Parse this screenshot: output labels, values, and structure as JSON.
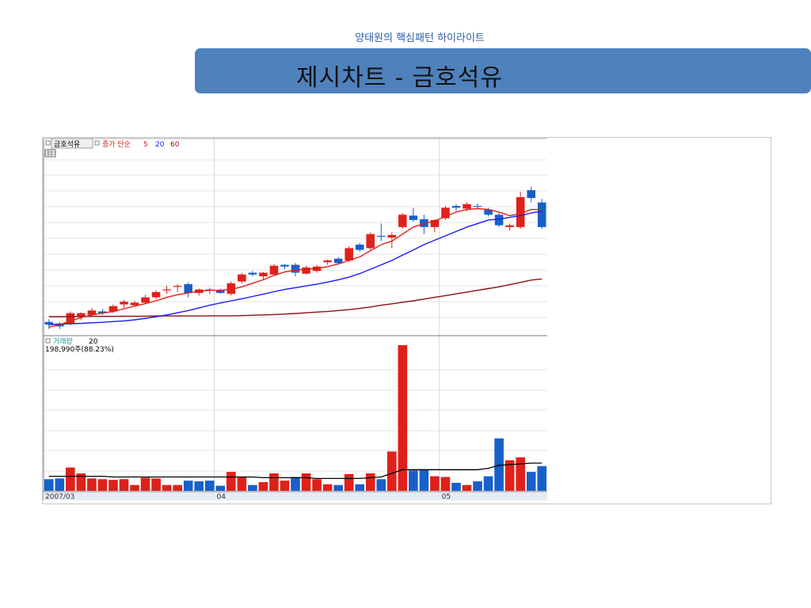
{
  "header": {
    "subtitle": "양태원의 핵심패턴 하이라이트",
    "title": "제시차트 - 금호석유"
  },
  "chart_data": {
    "type": "candlestick",
    "price_panel": {
      "stock_label": "금호석유",
      "indicator_label": "종가 단순",
      "ma_periods": [
        "5",
        "20",
        "60"
      ],
      "ma_colors": [
        "#e0201a",
        "#1a1aff",
        "#8b1010"
      ],
      "candles": [
        {
          "o": 0.045,
          "h": 0.075,
          "l": 0.02,
          "c": 0.06,
          "dir": "down"
        },
        {
          "o": 0.035,
          "h": 0.06,
          "l": 0.02,
          "c": 0.045,
          "dir": "down"
        },
        {
          "o": 0.05,
          "h": 0.12,
          "l": 0.04,
          "c": 0.11,
          "dir": "up"
        },
        {
          "o": 0.09,
          "h": 0.115,
          "l": 0.07,
          "c": 0.11,
          "dir": "up"
        },
        {
          "o": 0.1,
          "h": 0.14,
          "l": 0.09,
          "c": 0.125,
          "dir": "up"
        },
        {
          "o": 0.11,
          "h": 0.135,
          "l": 0.1,
          "c": 0.12,
          "dir": "down"
        },
        {
          "o": 0.12,
          "h": 0.16,
          "l": 0.11,
          "c": 0.15,
          "dir": "up"
        },
        {
          "o": 0.16,
          "h": 0.185,
          "l": 0.14,
          "c": 0.175,
          "dir": "up"
        },
        {
          "o": 0.155,
          "h": 0.18,
          "l": 0.15,
          "c": 0.17,
          "dir": "up"
        },
        {
          "o": 0.17,
          "h": 0.215,
          "l": 0.16,
          "c": 0.2,
          "dir": "up"
        },
        {
          "o": 0.2,
          "h": 0.24,
          "l": 0.19,
          "c": 0.23,
          "dir": "up"
        },
        {
          "o": 0.24,
          "h": 0.265,
          "l": 0.22,
          "c": 0.245,
          "dir": "up"
        },
        {
          "o": 0.26,
          "h": 0.275,
          "l": 0.23,
          "c": 0.265,
          "dir": "up"
        },
        {
          "o": 0.275,
          "h": 0.285,
          "l": 0.2,
          "c": 0.225,
          "dir": "down"
        },
        {
          "o": 0.225,
          "h": 0.25,
          "l": 0.21,
          "c": 0.245,
          "dir": "up"
        },
        {
          "o": 0.245,
          "h": 0.255,
          "l": 0.22,
          "c": 0.24,
          "dir": "down"
        },
        {
          "o": 0.24,
          "h": 0.25,
          "l": 0.22,
          "c": 0.225,
          "dir": "down"
        },
        {
          "o": 0.22,
          "h": 0.29,
          "l": 0.21,
          "c": 0.28,
          "dir": "up"
        },
        {
          "o": 0.29,
          "h": 0.34,
          "l": 0.28,
          "c": 0.33,
          "dir": "up"
        },
        {
          "o": 0.33,
          "h": 0.35,
          "l": 0.32,
          "c": 0.34,
          "dir": "down"
        },
        {
          "o": 0.32,
          "h": 0.345,
          "l": 0.3,
          "c": 0.34,
          "dir": "up"
        },
        {
          "o": 0.33,
          "h": 0.39,
          "l": 0.32,
          "c": 0.38,
          "dir": "up"
        },
        {
          "o": 0.375,
          "h": 0.39,
          "l": 0.36,
          "c": 0.385,
          "dir": "down"
        },
        {
          "o": 0.385,
          "h": 0.395,
          "l": 0.32,
          "c": 0.34,
          "dir": "down"
        },
        {
          "o": 0.335,
          "h": 0.38,
          "l": 0.33,
          "c": 0.37,
          "dir": "up"
        },
        {
          "o": 0.35,
          "h": 0.385,
          "l": 0.34,
          "c": 0.375,
          "dir": "up"
        },
        {
          "o": 0.4,
          "h": 0.415,
          "l": 0.385,
          "c": 0.41,
          "dir": "up"
        },
        {
          "o": 0.42,
          "h": 0.43,
          "l": 0.39,
          "c": 0.395,
          "dir": "down"
        },
        {
          "o": 0.41,
          "h": 0.49,
          "l": 0.4,
          "c": 0.48,
          "dir": "up"
        },
        {
          "o": 0.5,
          "h": 0.51,
          "l": 0.46,
          "c": 0.47,
          "dir": "down"
        },
        {
          "o": 0.48,
          "h": 0.57,
          "l": 0.47,
          "c": 0.56,
          "dir": "up"
        },
        {
          "o": 0.55,
          "h": 0.62,
          "l": 0.52,
          "c": 0.545,
          "dir": "down"
        },
        {
          "o": 0.54,
          "h": 0.57,
          "l": 0.48,
          "c": 0.555,
          "dir": "up"
        },
        {
          "o": 0.6,
          "h": 0.68,
          "l": 0.59,
          "c": 0.67,
          "dir": "up"
        },
        {
          "o": 0.665,
          "h": 0.71,
          "l": 0.63,
          "c": 0.64,
          "dir": "down"
        },
        {
          "o": 0.645,
          "h": 0.67,
          "l": 0.56,
          "c": 0.6,
          "dir": "down"
        },
        {
          "o": 0.6,
          "h": 0.645,
          "l": 0.57,
          "c": 0.64,
          "dir": "up"
        },
        {
          "o": 0.65,
          "h": 0.72,
          "l": 0.64,
          "c": 0.71,
          "dir": "up"
        },
        {
          "o": 0.71,
          "h": 0.73,
          "l": 0.69,
          "c": 0.72,
          "dir": "down"
        },
        {
          "o": 0.705,
          "h": 0.74,
          "l": 0.69,
          "c": 0.73,
          "dir": "up"
        },
        {
          "o": 0.715,
          "h": 0.735,
          "l": 0.7,
          "c": 0.72,
          "dir": "down"
        },
        {
          "o": 0.7,
          "h": 0.71,
          "l": 0.66,
          "c": 0.67,
          "dir": "down"
        },
        {
          "o": 0.67,
          "h": 0.68,
          "l": 0.6,
          "c": 0.61,
          "dir": "down"
        },
        {
          "o": 0.6,
          "h": 0.62,
          "l": 0.58,
          "c": 0.61,
          "dir": "up"
        },
        {
          "o": 0.6,
          "h": 0.8,
          "l": 0.59,
          "c": 0.77,
          "dir": "up"
        },
        {
          "o": 0.81,
          "h": 0.83,
          "l": 0.74,
          "c": 0.765,
          "dir": "down"
        },
        {
          "o": 0.74,
          "h": 0.76,
          "l": 0.59,
          "c": 0.6,
          "dir": "down"
        }
      ],
      "ma5": [
        0.03,
        0.045,
        0.065,
        0.085,
        0.1,
        0.11,
        0.12,
        0.135,
        0.15,
        0.165,
        0.18,
        0.2,
        0.215,
        0.225,
        0.235,
        0.24,
        0.24,
        0.245,
        0.26,
        0.28,
        0.3,
        0.325,
        0.345,
        0.355,
        0.36,
        0.365,
        0.375,
        0.39,
        0.41,
        0.43,
        0.465,
        0.5,
        0.52,
        0.56,
        0.6,
        0.62,
        0.635,
        0.66,
        0.685,
        0.7,
        0.705,
        0.7,
        0.685,
        0.665,
        0.675,
        0.7,
        0.7
      ],
      "ma20": [
        0.045,
        0.048,
        0.05,
        0.052,
        0.055,
        0.058,
        0.062,
        0.066,
        0.072,
        0.08,
        0.09,
        0.1,
        0.112,
        0.125,
        0.14,
        0.155,
        0.168,
        0.18,
        0.192,
        0.205,
        0.218,
        0.232,
        0.245,
        0.255,
        0.265,
        0.275,
        0.287,
        0.3,
        0.315,
        0.335,
        0.36,
        0.385,
        0.41,
        0.44,
        0.47,
        0.5,
        0.525,
        0.55,
        0.575,
        0.6,
        0.62,
        0.64,
        0.645,
        0.655,
        0.665,
        0.68,
        0.69
      ],
      "ma60": [
        0.09,
        0.09,
        0.091,
        0.091,
        0.092,
        0.092,
        0.092,
        0.093,
        0.093,
        0.093,
        0.094,
        0.094,
        0.094,
        0.094,
        0.094,
        0.095,
        0.095,
        0.095,
        0.096,
        0.098,
        0.1,
        0.102,
        0.105,
        0.108,
        0.112,
        0.116,
        0.12,
        0.125,
        0.13,
        0.137,
        0.145,
        0.155,
        0.163,
        0.172,
        0.18,
        0.19,
        0.2,
        0.21,
        0.22,
        0.23,
        0.24,
        0.25,
        0.26,
        0.272,
        0.285,
        0.298,
        0.305
      ]
    },
    "volume_panel": {
      "label": "거래량",
      "ma_period": "20",
      "readout": "198,990주(88.23%)",
      "bars": [
        {
          "v": 0.08,
          "dir": "down"
        },
        {
          "v": 0.085,
          "dir": "down"
        },
        {
          "v": 0.16,
          "dir": "up"
        },
        {
          "v": 0.12,
          "dir": "up"
        },
        {
          "v": 0.085,
          "dir": "up"
        },
        {
          "v": 0.08,
          "dir": "up"
        },
        {
          "v": 0.075,
          "dir": "up"
        },
        {
          "v": 0.08,
          "dir": "up"
        },
        {
          "v": 0.04,
          "dir": "up"
        },
        {
          "v": 0.09,
          "dir": "up"
        },
        {
          "v": 0.085,
          "dir": "up"
        },
        {
          "v": 0.04,
          "dir": "up"
        },
        {
          "v": 0.04,
          "dir": "up"
        },
        {
          "v": 0.07,
          "dir": "down"
        },
        {
          "v": 0.065,
          "dir": "down"
        },
        {
          "v": 0.07,
          "dir": "down"
        },
        {
          "v": 0.035,
          "dir": "down"
        },
        {
          "v": 0.13,
          "dir": "up"
        },
        {
          "v": 0.095,
          "dir": "up"
        },
        {
          "v": 0.04,
          "dir": "down"
        },
        {
          "v": 0.06,
          "dir": "up"
        },
        {
          "v": 0.12,
          "dir": "up"
        },
        {
          "v": 0.07,
          "dir": "up"
        },
        {
          "v": 0.095,
          "dir": "down"
        },
        {
          "v": 0.12,
          "dir": "up"
        },
        {
          "v": 0.08,
          "dir": "up"
        },
        {
          "v": 0.045,
          "dir": "up"
        },
        {
          "v": 0.04,
          "dir": "down"
        },
        {
          "v": 0.115,
          "dir": "up"
        },
        {
          "v": 0.045,
          "dir": "down"
        },
        {
          "v": 0.12,
          "dir": "up"
        },
        {
          "v": 0.08,
          "dir": "down"
        },
        {
          "v": 0.27,
          "dir": "up"
        },
        {
          "v": 1.0,
          "dir": "up"
        },
        {
          "v": 0.14,
          "dir": "down"
        },
        {
          "v": 0.145,
          "dir": "down"
        },
        {
          "v": 0.1,
          "dir": "up"
        },
        {
          "v": 0.095,
          "dir": "up"
        },
        {
          "v": 0.055,
          "dir": "down"
        },
        {
          "v": 0.04,
          "dir": "up"
        },
        {
          "v": 0.065,
          "dir": "down"
        },
        {
          "v": 0.1,
          "dir": "down"
        },
        {
          "v": 0.36,
          "dir": "down"
        },
        {
          "v": 0.21,
          "dir": "up"
        },
        {
          "v": 0.23,
          "dir": "up"
        },
        {
          "v": 0.13,
          "dir": "down"
        },
        {
          "v": 0.17,
          "dir": "down"
        }
      ],
      "ma20": [
        0.1,
        0.1,
        0.1,
        0.1,
        0.1,
        0.1,
        0.095,
        0.095,
        0.095,
        0.095,
        0.095,
        0.095,
        0.095,
        0.095,
        0.095,
        0.095,
        0.095,
        0.095,
        0.095,
        0.095,
        0.09,
        0.09,
        0.09,
        0.09,
        0.09,
        0.085,
        0.085,
        0.085,
        0.085,
        0.085,
        0.09,
        0.095,
        0.12,
        0.145,
        0.145,
        0.145,
        0.145,
        0.145,
        0.145,
        0.145,
        0.145,
        0.155,
        0.175,
        0.18,
        0.185,
        0.19,
        0.19
      ]
    },
    "x_tick_labels": [
      {
        "label": "2007/03",
        "index": 0
      },
      {
        "label": "04",
        "index": 16
      },
      {
        "label": "05",
        "index": 37
      }
    ],
    "colors": {
      "up": "#e0201a",
      "down": "#1760c8"
    }
  }
}
